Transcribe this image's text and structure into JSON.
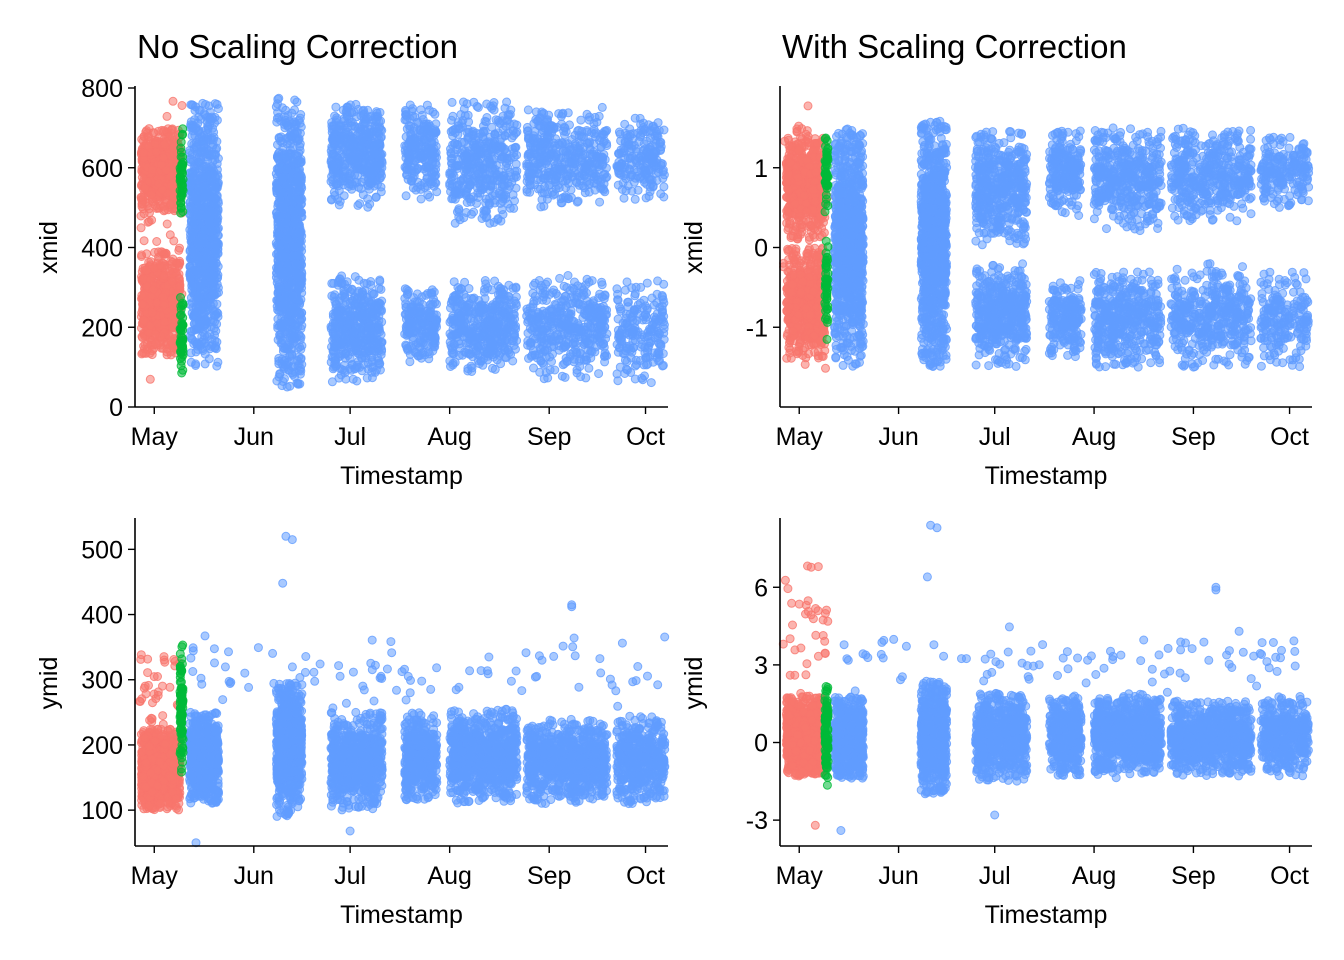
{
  "figure": {
    "titles": [
      "No Scaling Correction",
      "With Scaling Correction"
    ]
  },
  "colors": {
    "red": "#F8766D",
    "green": "#00BA38",
    "blue": "#619CFF"
  },
  "chart_data": [
    {
      "type": "scatter",
      "title": "No Scaling Correction",
      "xlabel": "Timestamp",
      "ylabel": "xmid",
      "ylim": [
        0,
        800
      ],
      "yticks": [
        0,
        200,
        400,
        600,
        800
      ],
      "xticks": [
        "May",
        "Jun",
        "Jul",
        "Aug",
        "Sep",
        "Oct"
      ],
      "xlim": [
        "2023-04-25",
        "2023-10-08"
      ],
      "grid": false,
      "legend": "none",
      "series": [
        {
          "color": "red",
          "clusters": [
            {
              "x": [
                "2023-04-27",
                "2023-05-09"
              ],
              "y": [
                490,
                700
              ],
              "n": 650
            },
            {
              "x": [
                "2023-04-27",
                "2023-05-09"
              ],
              "y": [
                130,
                390
              ],
              "n": 650
            },
            {
              "x": [
                "2023-04-26",
                "2023-05-10"
              ],
              "y": [
                60,
                770
              ],
              "n": 45
            }
          ]
        },
        {
          "color": "green",
          "clusters": [
            {
              "x": [
                "2023-05-09",
                "2023-05-10"
              ],
              "y": [
                480,
                710
              ],
              "n": 45
            },
            {
              "x": [
                "2023-05-09",
                "2023-05-10"
              ],
              "y": [
                70,
                280
              ],
              "n": 45
            }
          ]
        },
        {
          "color": "blue",
          "clusters": [
            {
              "x": [
                "2023-05-12",
                "2023-05-21"
              ],
              "y": [
                100,
                765
              ],
              "n": 900
            },
            {
              "x": [
                "2023-06-08",
                "2023-06-16"
              ],
              "y": [
                50,
                775
              ],
              "n": 1000
            },
            {
              "x": [
                "2023-06-25",
                "2023-07-11"
              ],
              "y": [
                500,
                760
              ],
              "n": 450
            },
            {
              "x": [
                "2023-06-25",
                "2023-07-11"
              ],
              "y": [
                60,
                330
              ],
              "n": 450
            },
            {
              "x": [
                "2023-07-18",
                "2023-07-28"
              ],
              "y": [
                520,
                760
              ],
              "n": 220
            },
            {
              "x": [
                "2023-07-18",
                "2023-07-28"
              ],
              "y": [
                110,
                300
              ],
              "n": 200
            },
            {
              "x": [
                "2023-08-01",
                "2023-08-22"
              ],
              "y": [
                460,
                765
              ],
              "n": 420
            },
            {
              "x": [
                "2023-08-01",
                "2023-08-22"
              ],
              "y": [
                80,
                320
              ],
              "n": 420
            },
            {
              "x": [
                "2023-08-25",
                "2023-09-19"
              ],
              "y": [
                500,
                760
              ],
              "n": 420
            },
            {
              "x": [
                "2023-08-25",
                "2023-09-19"
              ],
              "y": [
                70,
                330
              ],
              "n": 420
            },
            {
              "x": [
                "2023-09-22",
                "2023-10-07"
              ],
              "y": [
                520,
                730
              ],
              "n": 200
            },
            {
              "x": [
                "2023-09-22",
                "2023-10-07"
              ],
              "y": [
                60,
                320
              ],
              "n": 200
            }
          ]
        }
      ]
    },
    {
      "type": "scatter",
      "title": "With Scaling Correction",
      "xlabel": "Timestamp",
      "ylabel": "xmid",
      "ylim": [
        -2,
        2
      ],
      "yticks": [
        -1,
        0,
        1
      ],
      "xticks": [
        "May",
        "Jun",
        "Jul",
        "Aug",
        "Sep",
        "Oct"
      ],
      "xlim": [
        "2023-04-25",
        "2023-10-08"
      ],
      "grid": false,
      "legend": "none",
      "series": [
        {
          "color": "red",
          "clusters": [
            {
              "x": [
                "2023-04-27",
                "2023-05-09"
              ],
              "y": [
                0.1,
                1.5
              ],
              "n": 650
            },
            {
              "x": [
                "2023-04-27",
                "2023-05-09"
              ],
              "y": [
                -1.4,
                0.0
              ],
              "n": 650
            },
            {
              "x": [
                "2023-04-26",
                "2023-05-10"
              ],
              "y": [
                -1.75,
                1.8
              ],
              "n": 45
            }
          ]
        },
        {
          "color": "green",
          "clusters": [
            {
              "x": [
                "2023-05-09",
                "2023-05-10"
              ],
              "y": [
                0.4,
                1.4
              ],
              "n": 45
            },
            {
              "x": [
                "2023-05-09",
                "2023-05-10"
              ],
              "y": [
                -1.2,
                0.1
              ],
              "n": 45
            }
          ]
        },
        {
          "color": "blue",
          "clusters": [
            {
              "x": [
                "2023-05-12",
                "2023-05-21"
              ],
              "y": [
                -1.5,
                1.5
              ],
              "n": 900
            },
            {
              "x": [
                "2023-06-08",
                "2023-06-16"
              ],
              "y": [
                -1.5,
                1.6
              ],
              "n": 1000
            },
            {
              "x": [
                "2023-06-25",
                "2023-07-11"
              ],
              "y": [
                0.0,
                1.5
              ],
              "n": 450
            },
            {
              "x": [
                "2023-06-25",
                "2023-07-11"
              ],
              "y": [
                -1.5,
                -0.2
              ],
              "n": 450
            },
            {
              "x": [
                "2023-07-18",
                "2023-07-28"
              ],
              "y": [
                0.4,
                1.5
              ],
              "n": 220
            },
            {
              "x": [
                "2023-07-18",
                "2023-07-28"
              ],
              "y": [
                -1.4,
                -0.4
              ],
              "n": 200
            },
            {
              "x": [
                "2023-08-01",
                "2023-08-22"
              ],
              "y": [
                0.2,
                1.5
              ],
              "n": 420
            },
            {
              "x": [
                "2023-08-01",
                "2023-08-22"
              ],
              "y": [
                -1.5,
                -0.3
              ],
              "n": 420
            },
            {
              "x": [
                "2023-08-25",
                "2023-09-19"
              ],
              "y": [
                0.3,
                1.5
              ],
              "n": 420
            },
            {
              "x": [
                "2023-08-25",
                "2023-09-19"
              ],
              "y": [
                -1.5,
                -0.2
              ],
              "n": 420
            },
            {
              "x": [
                "2023-09-22",
                "2023-10-07"
              ],
              "y": [
                0.5,
                1.4
              ],
              "n": 200
            },
            {
              "x": [
                "2023-09-22",
                "2023-10-07"
              ],
              "y": [
                -1.5,
                -0.3
              ],
              "n": 200
            }
          ]
        }
      ]
    },
    {
      "type": "scatter",
      "title": "",
      "xlabel": "Timestamp",
      "ylabel": "ymid",
      "ylim": [
        45,
        545
      ],
      "yticks": [
        100,
        200,
        300,
        400,
        500
      ],
      "xticks": [
        "May",
        "Jun",
        "Jul",
        "Aug",
        "Sep",
        "Oct"
      ],
      "xlim": [
        "2023-04-25",
        "2023-10-08"
      ],
      "grid": false,
      "legend": "none",
      "series": [
        {
          "color": "red",
          "clusters": [
            {
              "x": [
                "2023-04-27",
                "2023-05-09"
              ],
              "y": [
                100,
                225
              ],
              "n": 1100
            },
            {
              "x": [
                "2023-04-26",
                "2023-05-10"
              ],
              "y": [
                225,
                365
              ],
              "n": 35
            }
          ]
        },
        {
          "color": "green",
          "clusters": [
            {
              "x": [
                "2023-05-09",
                "2023-05-10"
              ],
              "y": [
                150,
                360
              ],
              "n": 90
            }
          ]
        },
        {
          "color": "blue",
          "clusters": [
            {
              "x": [
                "2023-05-12",
                "2023-05-21"
              ],
              "y": [
                110,
                250
              ],
              "n": 700
            },
            {
              "x": [
                "2023-06-08",
                "2023-06-16"
              ],
              "y": [
                90,
                300
              ],
              "n": 700
            },
            {
              "x": [
                "2023-06-25",
                "2023-07-11"
              ],
              "y": [
                100,
                250
              ],
              "n": 650
            },
            {
              "x": [
                "2023-07-18",
                "2023-07-28"
              ],
              "y": [
                115,
                250
              ],
              "n": 420
            },
            {
              "x": [
                "2023-08-01",
                "2023-08-22"
              ],
              "y": [
                110,
                255
              ],
              "n": 800
            },
            {
              "x": [
                "2023-08-25",
                "2023-09-19"
              ],
              "y": [
                110,
                240
              ],
              "n": 800
            },
            {
              "x": [
                "2023-09-22",
                "2023-10-07"
              ],
              "y": [
                110,
                245
              ],
              "n": 450
            },
            {
              "x": [
                "2023-05-12",
                "2023-10-07"
              ],
              "y": [
                255,
                370
              ],
              "n": 90
            }
          ],
          "points": [
            {
              "x": "2023-05-14",
              "y": 50
            },
            {
              "x": "2023-06-11",
              "y": 520
            },
            {
              "x": "2023-06-13",
              "y": 515
            },
            {
              "x": "2023-06-10",
              "y": 448
            },
            {
              "x": "2023-09-08",
              "y": 415
            },
            {
              "x": "2023-09-08",
              "y": 412
            },
            {
              "x": "2023-07-01",
              "y": 68
            }
          ]
        }
      ]
    },
    {
      "type": "scatter",
      "title": "",
      "xlabel": "Timestamp",
      "ylabel": "ymid",
      "ylim": [
        -4,
        8.6
      ],
      "yticks": [
        -3,
        0,
        3,
        6
      ],
      "xticks": [
        "May",
        "Jun",
        "Jul",
        "Aug",
        "Sep",
        "Oct"
      ],
      "xlim": [
        "2023-04-25",
        "2023-10-08"
      ],
      "grid": false,
      "legend": "none",
      "series": [
        {
          "color": "red",
          "clusters": [
            {
              "x": [
                "2023-04-27",
                "2023-05-09"
              ],
              "y": [
                -1.3,
                1.8
              ],
              "n": 1100
            },
            {
              "x": [
                "2023-04-26",
                "2023-05-10"
              ],
              "y": [
                1.8,
                7.3
              ],
              "n": 35
            }
          ],
          "points": [
            {
              "x": "2023-05-06",
              "y": -3.2
            }
          ]
        },
        {
          "color": "green",
          "clusters": [
            {
              "x": [
                "2023-05-09",
                "2023-05-10"
              ],
              "y": [
                -1.7,
                2.4
              ],
              "n": 90
            }
          ]
        },
        {
          "color": "blue",
          "clusters": [
            {
              "x": [
                "2023-05-12",
                "2023-05-21"
              ],
              "y": [
                -1.4,
                1.8
              ],
              "n": 700
            },
            {
              "x": [
                "2023-06-08",
                "2023-06-16"
              ],
              "y": [
                -2.0,
                2.4
              ],
              "n": 700
            },
            {
              "x": [
                "2023-06-25",
                "2023-07-11"
              ],
              "y": [
                -1.5,
                1.9
              ],
              "n": 650
            },
            {
              "x": [
                "2023-07-18",
                "2023-07-28"
              ],
              "y": [
                -1.3,
                1.8
              ],
              "n": 420
            },
            {
              "x": [
                "2023-08-01",
                "2023-08-22"
              ],
              "y": [
                -1.4,
                1.9
              ],
              "n": 800
            },
            {
              "x": [
                "2023-08-25",
                "2023-09-19"
              ],
              "y": [
                -1.3,
                1.6
              ],
              "n": 800
            },
            {
              "x": [
                "2023-09-22",
                "2023-10-07"
              ],
              "y": [
                -1.3,
                1.8
              ],
              "n": 450
            },
            {
              "x": [
                "2023-05-12",
                "2023-10-07"
              ],
              "y": [
                1.9,
                4.6
              ],
              "n": 90
            }
          ],
          "points": [
            {
              "x": "2023-05-14",
              "y": -3.4
            },
            {
              "x": "2023-06-11",
              "y": 8.4
            },
            {
              "x": "2023-06-13",
              "y": 8.3
            },
            {
              "x": "2023-06-10",
              "y": 6.4
            },
            {
              "x": "2023-09-08",
              "y": 6.0
            },
            {
              "x": "2023-09-08",
              "y": 5.9
            },
            {
              "x": "2023-07-01",
              "y": -2.8
            }
          ]
        }
      ]
    }
  ]
}
